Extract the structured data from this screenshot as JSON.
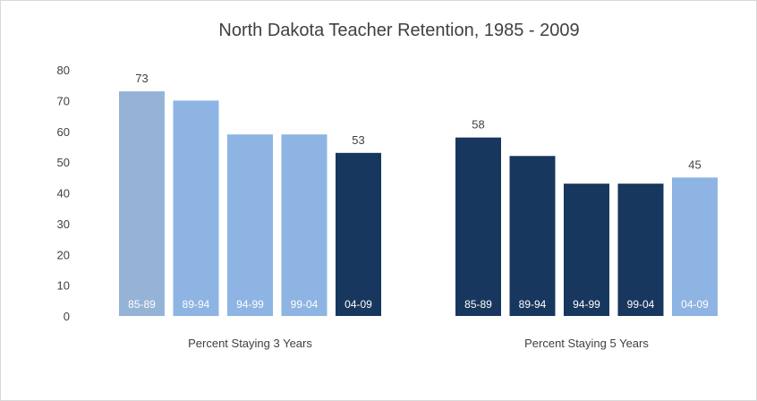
{
  "chart_data": {
    "type": "bar",
    "title": "North Dakota Teacher Retention, 1985 - 2009",
    "ylim": [
      0,
      80
    ],
    "yticks": [
      0,
      10,
      20,
      30,
      40,
      50,
      60,
      70,
      80
    ],
    "grid": false,
    "legend": "none",
    "groups": [
      {
        "name": "Percent Staying 3 Years",
        "categories": [
          "85-89",
          "89-94",
          "94-99",
          "99-04",
          "04-09"
        ],
        "values": [
          73,
          70,
          59,
          59,
          53
        ],
        "colors": [
          "#95b3d7",
          "#8db4e2",
          "#8db4e2",
          "#8db4e2",
          "#17375e"
        ],
        "data_labels": [
          "73",
          "",
          "",
          "",
          "53"
        ]
      },
      {
        "name": "Percent Staying 5 Years",
        "categories": [
          "85-89",
          "89-94",
          "94-99",
          "99-04",
          "04-09"
        ],
        "values": [
          58,
          52,
          43,
          43,
          45
        ],
        "colors": [
          "#17375e",
          "#17375e",
          "#17375e",
          "#17375e",
          "#8db4e2"
        ],
        "data_labels": [
          "58",
          "",
          "",
          "",
          "45"
        ]
      }
    ]
  }
}
